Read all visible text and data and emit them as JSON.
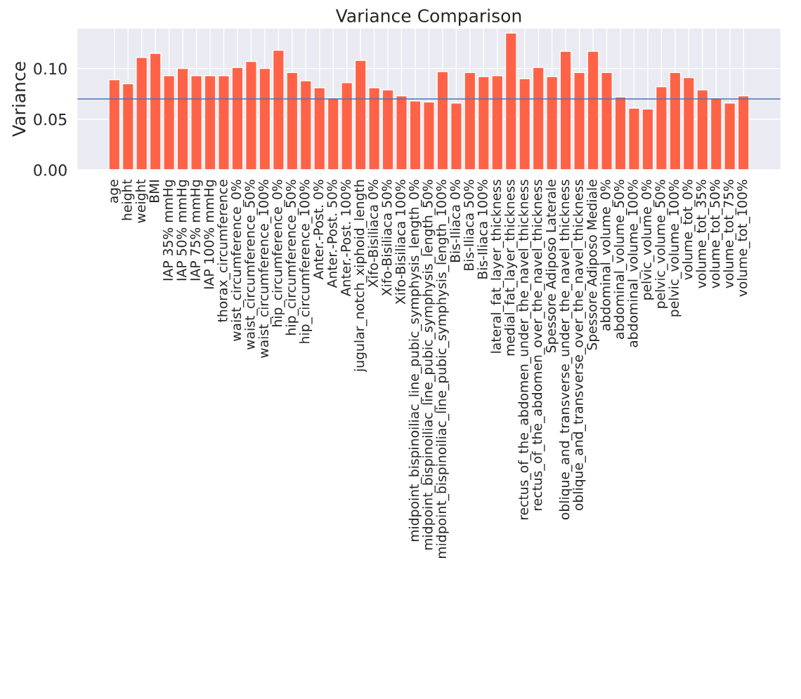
{
  "chart_data": {
    "type": "bar",
    "title": "Variance Comparison",
    "ylabel": "Variance",
    "categories": [
      "age",
      "height",
      "weight",
      "BMI",
      "IAP 35% mmHg",
      "IAP 50% mmHg",
      "IAP 75% mmHg",
      "IAP 100% mmHg",
      "thorax_circumference",
      "waist_circumference_0%",
      "waist_circumference_50%",
      "waist_circumference_100%",
      "hip_circumference_0%",
      "hip_circumference_50%",
      "hip_circumference_100%",
      "Anter.-Post. 0%",
      "Anter.-Post. 50%",
      "Anter.-Post. 100%",
      "jugular_notch_xiphoid_length",
      "Xifo-Bisiliaca 0%",
      "Xifo-Bisiliaca 50%",
      "Xifo-Bisiliaca 100%",
      "midpoint_bispinoiliac_line_pubic_symphysis_length_0%",
      "midpoint_bispinoiliac_line_pubic_symphysis_length_50%",
      "midpoint_bispinoiliac_line_pubic_symphysis_length_100%",
      "Bis-Iliaca 0%",
      "Bis-Iliaca 50%",
      "Bis-Iliaca 100%",
      "lateral_fat_layer_thickness",
      "medial_fat_layer_thickness",
      "rectus_of_the_abdomen_under_the_navel_thickness",
      "rectus_of_the_abdomen_over_the_navel_thickness",
      "Spessore Adiposo Laterale",
      "oblique_and_transverse_under_the_navel_thickness",
      "oblique_and_transverse_over_the_navel_thickness",
      "Spessore Adiposo Mediale",
      "abdominal_volume_0%",
      "abdominal_volume_50%",
      "abdominal_volume_100%",
      "pelvic_volume_0%",
      "pelvic_volume_50%",
      "pelvic_volume_100%",
      "volume_tot_0%",
      "volume_tot_35%",
      "volume_tot_50%",
      "volume_tot_75%",
      "volume_tot_100%"
    ],
    "values": [
      0.089,
      0.085,
      0.111,
      0.115,
      0.093,
      0.1,
      0.093,
      0.093,
      0.093,
      0.101,
      0.107,
      0.1,
      0.118,
      0.096,
      0.088,
      0.081,
      0.071,
      0.086,
      0.108,
      0.081,
      0.079,
      0.073,
      0.068,
      0.067,
      0.097,
      0.066,
      0.096,
      0.092,
      0.093,
      0.135,
      0.09,
      0.101,
      0.092,
      0.117,
      0.096,
      0.117,
      0.096,
      0.072,
      0.061,
      0.06,
      0.082,
      0.096,
      0.091,
      0.079,
      0.071,
      0.066,
      0.073
    ],
    "color": "#ff6347",
    "ylim": [
      0,
      0.14
    ],
    "yticks": [
      {
        "value": 0,
        "label": "0.00"
      },
      {
        "value": 0.05,
        "label": "0.05"
      },
      {
        "value": 0.1,
        "label": "0.10"
      }
    ],
    "ref_lines": [
      {
        "axis": "y",
        "value": 0.07,
        "color": "#4c72b0"
      }
    ],
    "grid": true
  }
}
